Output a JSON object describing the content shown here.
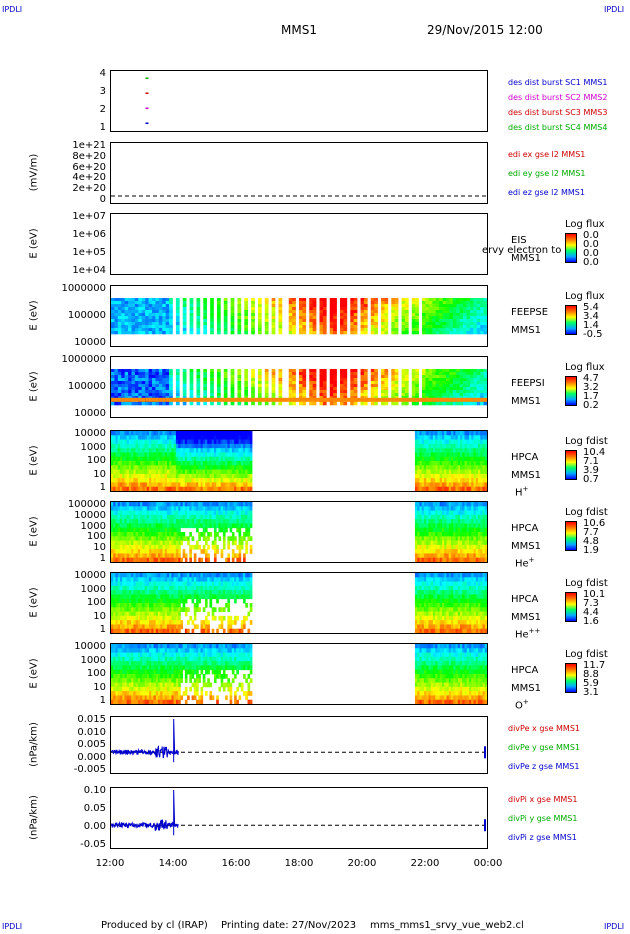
{
  "corners": {
    "tl": "IPDLI",
    "tr": "IPDLI",
    "bl": "IPDLI",
    "br": "IPDLI"
  },
  "header": {
    "spacecraft": "MMS1",
    "datetime": "29/Nov/2015 12:00"
  },
  "footer": {
    "produced_by": "Produced by cl (IRAP)",
    "printing_date": "Printing date: 27/Nov/2023",
    "file": "mms_mms1_srvy_vue_web2.cl"
  },
  "chart_data": {
    "type": "heatmap",
    "xaxis": {
      "ticks": [
        "12:00",
        "14:00",
        "16:00",
        "18:00",
        "20:00",
        "22:00",
        "00:00"
      ],
      "range": [
        "12:00",
        "00:00"
      ]
    },
    "panels": [
      {
        "id": "burst",
        "ylabel": "",
        "yticks": [
          "4",
          "3",
          "2",
          "1"
        ],
        "legend": [
          {
            "text": "des dist burst SC1 MMS1",
            "color": "#0000cc"
          },
          {
            "text": "des dist burst SC2 MMS2",
            "color": "#cc00cc"
          },
          {
            "text": "des dist burst SC3 MMS3",
            "color": "#cc0000"
          },
          {
            "text": "des dist burst SC4 MMS4",
            "color": "#00aa00"
          }
        ]
      },
      {
        "id": "efield",
        "ylabel": "(mV/m)",
        "yticks": [
          "1e+21",
          "8e+20",
          "6e+20",
          "4e+20",
          "2e+20",
          "0"
        ],
        "legend": [
          {
            "text": "edi ex gse l2 MMS1",
            "color": "#cc0000"
          },
          {
            "text": "edi ey gse l2 MMS1",
            "color": "#00aa00"
          },
          {
            "text": "edi ez gse l2 MMS1",
            "color": "#0000cc"
          }
        ]
      },
      {
        "id": "eis",
        "ylabel": "E (eV)",
        "yticks": [
          "1e+07",
          "1e+06",
          "1e+05",
          "1e+04"
        ],
        "labels": [
          "EIS",
          "MMS1"
        ],
        "overlay": "ervy electron to",
        "cbar_title": "Log flux",
        "cbar": [
          "0.0",
          "0.0",
          "0.0",
          "0.0"
        ]
      },
      {
        "id": "feepse",
        "ylabel": "E (eV)",
        "yticks": [
          "1000000",
          "100000",
          "10000"
        ],
        "labels": [
          "FEEPSE",
          "MMS1"
        ],
        "cbar_title": "Log flux",
        "cbar": [
          "5.4",
          "3.4",
          "1.4",
          "-0.5"
        ]
      },
      {
        "id": "feepsi",
        "ylabel": "E (eV)",
        "yticks": [
          "1000000",
          "100000",
          "10000"
        ],
        "labels": [
          "FEEPSI",
          "MMS1"
        ],
        "cbar_title": "Log flux",
        "cbar": [
          "4.7",
          "3.2",
          "1.7",
          "0.2"
        ]
      },
      {
        "id": "hpca_h",
        "ylabel": "E (eV)",
        "yticks": [
          "10000",
          "1000",
          "100",
          "10",
          "1"
        ],
        "labels": [
          "HPCA",
          "MMS1"
        ],
        "species": "H",
        "sup": "+",
        "cbar_title": "Log fdist",
        "cbar": [
          "10.4",
          "7.1",
          "3.9",
          "0.7"
        ]
      },
      {
        "id": "hpca_he",
        "ylabel": "E (eV)",
        "yticks": [
          "100000",
          "10000",
          "1000",
          "100",
          "10",
          "1"
        ],
        "labels": [
          "HPCA",
          "MMS1"
        ],
        "species": "He",
        "sup": "+",
        "cbar_title": "Log fdist",
        "cbar": [
          "10.6",
          "7.7",
          "4.8",
          "1.9"
        ]
      },
      {
        "id": "hpca_hepp",
        "ylabel": "E (eV)",
        "yticks": [
          "10000",
          "1000",
          "100",
          "10",
          "1"
        ],
        "labels": [
          "HPCA",
          "MMS1"
        ],
        "species": "He",
        "sup": "++",
        "cbar_title": "Log fdist",
        "cbar": [
          "10.1",
          "7.3",
          "4.4",
          "1.6"
        ]
      },
      {
        "id": "hpca_o",
        "ylabel": "E (eV)",
        "yticks": [
          "10000",
          "1000",
          "100",
          "10",
          "1"
        ],
        "labels": [
          "HPCA",
          "MMS1"
        ],
        "species": "O",
        "sup": "+",
        "cbar_title": "Log fdist",
        "cbar": [
          "11.7",
          "8.8",
          "5.9",
          "3.1"
        ]
      },
      {
        "id": "divpe",
        "ylabel": "(nPa/km)",
        "yticks": [
          "0.015",
          "0.010",
          "0.005",
          "0.000",
          "-0.005"
        ],
        "legend": [
          {
            "text": "divPe x gse MMS1",
            "color": "#cc0000"
          },
          {
            "text": "divPe y gse MMS1",
            "color": "#00aa00"
          },
          {
            "text": "divPe z gse MMS1",
            "color": "#0000cc"
          }
        ]
      },
      {
        "id": "divpi",
        "ylabel": "(nPa/km)",
        "yticks": [
          "0.10",
          "0.05",
          "0.00",
          "-0.05"
        ],
        "legend": [
          {
            "text": "divPi x gse MMS1",
            "color": "#cc0000"
          },
          {
            "text": "divPi y gse MMS1",
            "color": "#00aa00"
          },
          {
            "text": "divPi z gse MMS1",
            "color": "#0000cc"
          }
        ]
      }
    ]
  }
}
